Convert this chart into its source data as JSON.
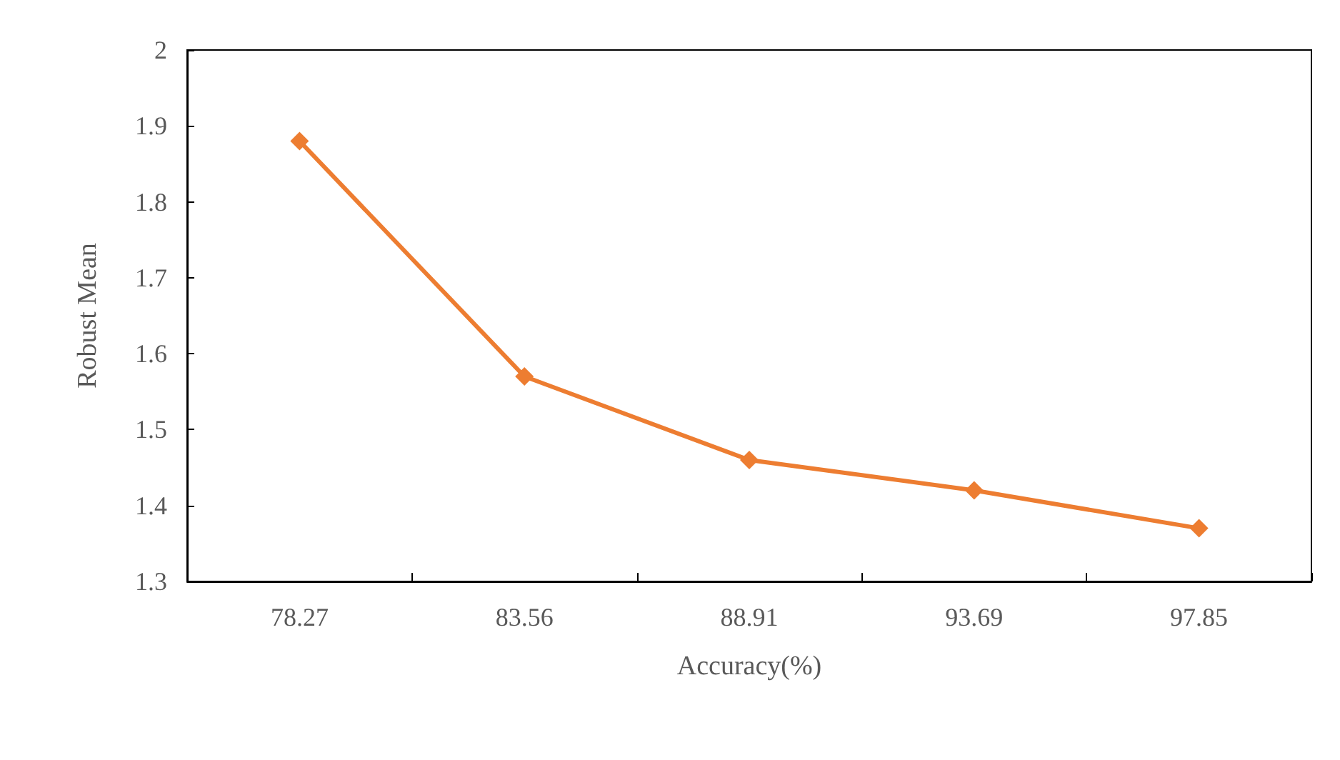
{
  "chart_data": {
    "type": "line",
    "xlabel": "Accuracy(%)",
    "ylabel": "Robust Mean",
    "categories": [
      "78.27",
      "83.56",
      "88.91",
      "93.69",
      "97.85"
    ],
    "series": [
      {
        "color": "#ed7d31",
        "values": [
          1.88,
          1.57,
          1.46,
          1.42,
          1.37
        ]
      }
    ],
    "ylim": [
      1.3,
      2
    ],
    "yticks": [
      1.3,
      1.4,
      1.5,
      1.6,
      1.7,
      1.8,
      1.9,
      2
    ],
    "grid": false,
    "marker": "diamond",
    "line_style": "solid"
  }
}
